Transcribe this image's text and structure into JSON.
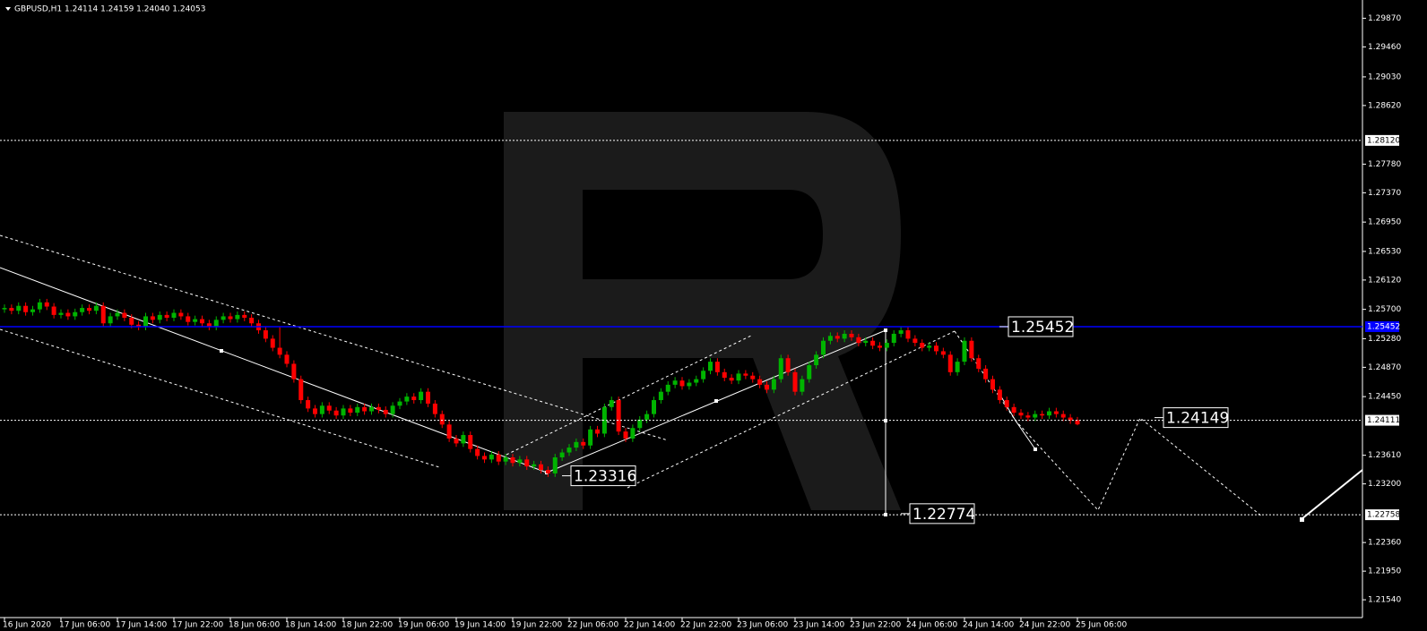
{
  "chart_data": {
    "type": "candlestick",
    "title": "GBPUSD,H1  1.24114 1.24159 1.24040 1.24053",
    "up_color": "#00b400",
    "down_color": "#ff0000",
    "open": [
      1.257,
      1.2572,
      1.2568,
      1.2575,
      1.2566,
      1.257,
      1.258,
      1.2574,
      1.2562,
      1.2565,
      1.256,
      1.2566,
      1.2572,
      1.2568,
      1.2575,
      1.255,
      1.256,
      1.2565,
      1.2558,
      1.2548,
      1.2545,
      1.256,
      1.2555,
      1.2562,
      1.2558,
      1.2565,
      1.256,
      1.2552,
      1.2556,
      1.255,
      1.2545,
      1.2555,
      1.256,
      1.2556,
      1.2562,
      1.2558,
      1.255,
      1.254,
      1.2528,
      1.2515,
      1.2505,
      1.2492,
      1.247,
      1.244,
      1.2428,
      1.242,
      1.2432,
      1.2425,
      1.2418,
      1.2428,
      1.2422,
      1.243,
      1.2424,
      1.243,
      1.2426,
      1.242,
      1.2432,
      1.2438,
      1.2445,
      1.244,
      1.2452,
      1.2435,
      1.242,
      1.2405,
      1.2385,
      1.2378,
      1.239,
      1.237,
      1.236,
      1.2355,
      1.2362,
      1.2352,
      1.2358,
      1.235,
      1.2355,
      1.2345,
      1.2348,
      1.234,
      1.2335,
      1.2358,
      1.2365,
      1.2372,
      1.238,
      1.2375,
      1.2398,
      1.2392,
      1.243,
      1.244,
      1.2395,
      1.2385,
      1.24,
      1.2412,
      1.242,
      1.244,
      1.2452,
      1.2462,
      1.2468,
      1.246,
      1.2465,
      1.247,
      1.2482,
      1.2495,
      1.248,
      1.2472,
      1.2468,
      1.2478,
      1.2475,
      1.247,
      1.2462,
      1.2455,
      1.247,
      1.25,
      1.248,
      1.2452,
      1.247,
      1.249,
      1.2505,
      1.2525,
      1.2532,
      1.2528,
      1.2535,
      1.253,
      1.2522,
      1.2525,
      1.2518,
      1.2515,
      1.2522,
      1.2535,
      1.254,
      1.2528,
      1.2522,
      1.2515,
      1.2518,
      1.251,
      1.2505,
      1.248,
      1.2495,
      1.2525,
      1.25,
      1.2485,
      1.247,
      1.2455,
      1.244,
      1.243,
      1.2422,
      1.2418,
      1.2415,
      1.242,
      1.2418,
      1.2424,
      1.242,
      1.2415,
      1.24114
    ],
    "high": [
      1.2577,
      1.2577,
      1.258,
      1.258,
      1.2575,
      1.2585,
      1.2585,
      1.2579,
      1.257,
      1.257,
      1.2571,
      1.2577,
      1.2577,
      1.258,
      1.258,
      1.2565,
      1.257,
      1.257,
      1.2563,
      1.2553,
      1.2565,
      1.2565,
      1.2567,
      1.2567,
      1.257,
      1.257,
      1.2565,
      1.2561,
      1.2561,
      1.2555,
      1.256,
      1.2565,
      1.2565,
      1.2567,
      1.2567,
      1.2563,
      1.2555,
      1.2545,
      1.2533,
      1.2545,
      1.251,
      1.2497,
      1.2475,
      1.2445,
      1.2433,
      1.2437,
      1.2437,
      1.243,
      1.2433,
      1.2433,
      1.2435,
      1.2435,
      1.2435,
      1.2435,
      1.2431,
      1.2437,
      1.2443,
      1.245,
      1.245,
      1.2457,
      1.2457,
      1.244,
      1.2425,
      1.241,
      1.239,
      1.2395,
      1.2395,
      1.2375,
      1.2365,
      1.2367,
      1.2367,
      1.2363,
      1.2363,
      1.236,
      1.236,
      1.2353,
      1.2353,
      1.2345,
      1.2363,
      1.237,
      1.2377,
      1.2385,
      1.2385,
      1.2403,
      1.2403,
      1.2435,
      1.2445,
      1.2445,
      1.24,
      1.2405,
      1.2417,
      1.2425,
      1.2445,
      1.2457,
      1.2467,
      1.2473,
      1.2473,
      1.247,
      1.2475,
      1.2487,
      1.25,
      1.25,
      1.2485,
      1.2477,
      1.2483,
      1.2483,
      1.248,
      1.2475,
      1.2467,
      1.2475,
      1.2505,
      1.2505,
      1.2485,
      1.2475,
      1.2495,
      1.251,
      1.253,
      1.2537,
      1.2537,
      1.254,
      1.254,
      1.2535,
      1.253,
      1.253,
      1.2523,
      1.2527,
      1.254,
      1.2545,
      1.2545,
      1.2533,
      1.2527,
      1.2523,
      1.2523,
      1.2515,
      1.251,
      1.25,
      1.253,
      1.253,
      1.2505,
      1.249,
      1.2475,
      1.246,
      1.2445,
      1.2435,
      1.2427,
      1.2423,
      1.2425,
      1.2425,
      1.2429,
      1.2429,
      1.2425,
      1.242,
      1.24159
    ],
    "low": [
      1.2565,
      1.2563,
      1.2563,
      1.2561,
      1.2561,
      1.2565,
      1.2569,
      1.2557,
      1.2557,
      1.2555,
      1.2555,
      1.2561,
      1.2563,
      1.2563,
      1.2545,
      1.2545,
      1.2555,
      1.2553,
      1.2543,
      1.254,
      1.254,
      1.255,
      1.255,
      1.2553,
      1.2553,
      1.2555,
      1.2547,
      1.2547,
      1.2545,
      1.254,
      1.254,
      1.255,
      1.2551,
      1.2551,
      1.2553,
      1.2545,
      1.2535,
      1.2523,
      1.251,
      1.25,
      1.2487,
      1.2465,
      1.2435,
      1.2423,
      1.2415,
      1.2415,
      1.242,
      1.2413,
      1.2413,
      1.2417,
      1.2417,
      1.2419,
      1.2419,
      1.2421,
      1.2415,
      1.2415,
      1.2427,
      1.2433,
      1.2435,
      1.2435,
      1.243,
      1.2415,
      1.24,
      1.238,
      1.2373,
      1.2373,
      1.2365,
      1.2355,
      1.235,
      1.235,
      1.2347,
      1.2347,
      1.2345,
      1.2345,
      1.234,
      1.234,
      1.2335,
      1.233,
      1.233,
      1.2353,
      1.236,
      1.2367,
      1.237,
      1.237,
      1.2387,
      1.2387,
      1.2425,
      1.239,
      1.238,
      1.238,
      1.2395,
      1.2407,
      1.2415,
      1.2435,
      1.2447,
      1.2457,
      1.2455,
      1.2455,
      1.246,
      1.2465,
      1.2477,
      1.2475,
      1.2467,
      1.2463,
      1.2463,
      1.247,
      1.2465,
      1.2457,
      1.245,
      1.245,
      1.2465,
      1.2475,
      1.2447,
      1.2447,
      1.2465,
      1.2485,
      1.25,
      1.252,
      1.2523,
      1.2523,
      1.2525,
      1.2517,
      1.2517,
      1.2513,
      1.251,
      1.251,
      1.2517,
      1.253,
      1.2523,
      1.2517,
      1.251,
      1.251,
      1.2505,
      1.25,
      1.2475,
      1.2475,
      1.249,
      1.2495,
      1.248,
      1.2465,
      1.245,
      1.2435,
      1.2425,
      1.2417,
      1.2413,
      1.241,
      1.241,
      1.2413,
      1.2413,
      1.2415,
      1.241,
      1.2406,
      1.2404
    ],
    "close": [
      1.2572,
      1.2568,
      1.2575,
      1.2566,
      1.257,
      1.258,
      1.2574,
      1.2562,
      1.2565,
      1.256,
      1.2566,
      1.2572,
      1.2568,
      1.2575,
      1.255,
      1.256,
      1.2565,
      1.2558,
      1.2548,
      1.2545,
      1.256,
      1.2555,
      1.2562,
      1.2558,
      1.2565,
      1.256,
      1.2552,
      1.2556,
      1.255,
      1.2545,
      1.2555,
      1.256,
      1.2556,
      1.2562,
      1.2558,
      1.255,
      1.254,
      1.2528,
      1.2515,
      1.2505,
      1.2492,
      1.247,
      1.244,
      1.2428,
      1.242,
      1.2432,
      1.2425,
      1.2418,
      1.2428,
      1.2422,
      1.243,
      1.2424,
      1.243,
      1.2426,
      1.242,
      1.2432,
      1.2438,
      1.2445,
      1.244,
      1.2452,
      1.2435,
      1.242,
      1.2405,
      1.2385,
      1.2378,
      1.239,
      1.237,
      1.236,
      1.2355,
      1.2362,
      1.2352,
      1.2358,
      1.235,
      1.2355,
      1.2345,
      1.2348,
      1.234,
      1.2335,
      1.2358,
      1.2365,
      1.2372,
      1.238,
      1.2375,
      1.2398,
      1.2392,
      1.243,
      1.244,
      1.2395,
      1.2385,
      1.24,
      1.2412,
      1.242,
      1.244,
      1.2452,
      1.2462,
      1.2468,
      1.246,
      1.2465,
      1.247,
      1.2482,
      1.2495,
      1.248,
      1.2472,
      1.2468,
      1.2478,
      1.2475,
      1.247,
      1.2462,
      1.2455,
      1.247,
      1.25,
      1.248,
      1.2452,
      1.247,
      1.249,
      1.2505,
      1.2525,
      1.2532,
      1.2528,
      1.2535,
      1.253,
      1.2522,
      1.2525,
      1.2518,
      1.2515,
      1.2522,
      1.2535,
      1.254,
      1.2528,
      1.2522,
      1.2515,
      1.2518,
      1.251,
      1.2505,
      1.248,
      1.2495,
      1.2525,
      1.25,
      1.2485,
      1.247,
      1.2455,
      1.244,
      1.243,
      1.2422,
      1.2418,
      1.2415,
      1.242,
      1.2418,
      1.2424,
      1.242,
      1.2415,
      1.2411,
      1.24053
    ],
    "xtick_labels": [
      "16 Jun 2020",
      "17 Jun 06:00",
      "17 Jun 14:00",
      "17 Jun 22:00",
      "18 Jun 06:00",
      "18 Jun 14:00",
      "18 Jun 22:00",
      "19 Jun 06:00",
      "19 Jun 14:00",
      "19 Jun 22:00",
      "22 Jun 06:00",
      "22 Jun 14:00",
      "22 Jun 22:00",
      "23 Jun 06:00",
      "23 Jun 14:00",
      "23 Jun 22:00",
      "24 Jun 06:00",
      "24 Jun 14:00",
      "24 Jun 22:00",
      "25 Jun 06:00"
    ],
    "ylim": [
      1.21285,
      1.3008
    ],
    "yticks": [
      {
        "value": 1.2987,
        "label": "1.29870"
      },
      {
        "value": 1.2946,
        "label": "1.29460"
      },
      {
        "value": 1.2903,
        "label": "1.29030"
      },
      {
        "value": 1.2862,
        "label": "1.28620"
      },
      {
        "value": 1.2778,
        "label": "1.27780"
      },
      {
        "value": 1.2737,
        "label": "1.27370"
      },
      {
        "value": 1.2695,
        "label": "1.26950"
      },
      {
        "value": 1.2653,
        "label": "1.26530"
      },
      {
        "value": 1.2612,
        "label": "1.26120"
      },
      {
        "value": 1.257,
        "label": "1.25700"
      },
      {
        "value": 1.2528,
        "label": "1.25280"
      },
      {
        "value": 1.2487,
        "label": "1.24870"
      },
      {
        "value": 1.2445,
        "label": "1.24450"
      },
      {
        "value": 1.2361,
        "label": "1.23610"
      },
      {
        "value": 1.232,
        "label": "1.23200"
      },
      {
        "value": 1.2236,
        "label": "1.22360"
      },
      {
        "value": 1.2195,
        "label": "1.21950"
      },
      {
        "value": 1.2154,
        "label": "1.21540"
      }
    ],
    "levels": [
      {
        "value": 1.2812,
        "label": "1.28120"
      },
      1.24111,
      1.22758
    ],
    "price_line": 1.25452,
    "price_line_color": "#0000ff",
    "annotations": [
      1.25452,
      1.24149,
      1.23316,
      1.22774
    ]
  }
}
